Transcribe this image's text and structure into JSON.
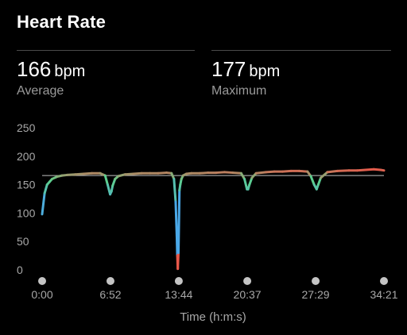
{
  "header": {
    "title": "Heart Rate"
  },
  "stats": {
    "average": {
      "value": "166",
      "unit": "bpm",
      "label": "Average"
    },
    "maximum": {
      "value": "177",
      "unit": "bpm",
      "label": "Maximum"
    }
  },
  "chart_data": {
    "type": "line",
    "title": "",
    "xlabel": "Time (h:m:s)",
    "ylabel": "",
    "x_unit": "seconds",
    "ylim": [
      0,
      250
    ],
    "xlim": [
      0,
      2061
    ],
    "y_ticks": [
      0,
      50,
      100,
      150,
      200,
      250
    ],
    "x_ticks": [
      {
        "seconds": 0,
        "label": "0:00"
      },
      {
        "seconds": 412,
        "label": "6:52"
      },
      {
        "seconds": 824,
        "label": "13:44"
      },
      {
        "seconds": 1237,
        "label": "20:37"
      },
      {
        "seconds": 1649,
        "label": "27:29"
      },
      {
        "seconds": 2061,
        "label": "34:21"
      }
    ],
    "reference_line": 166,
    "grid": false,
    "colors": {
      "low": "#4aa8e8",
      "mid": "#5ed08a",
      "high": "#e8584a",
      "reference": "#bfbfbf",
      "tick_dot": "#c4c4c4"
    },
    "series": [
      {
        "x": [
          0,
          15,
          30,
          45,
          60,
          90,
          120,
          150,
          200,
          250,
          300,
          350,
          380,
          395,
          410,
          418,
          425,
          440,
          460,
          500,
          550,
          600,
          650,
          700,
          750,
          780,
          795,
          805,
          812,
          815,
          818,
          822,
          828,
          833,
          840,
          850,
          870,
          900,
          950,
          1000,
          1050,
          1100,
          1150,
          1200,
          1220,
          1235,
          1242,
          1250,
          1265,
          1290,
          1350,
          1400,
          1450,
          1500,
          1550,
          1600,
          1620,
          1640,
          1655,
          1665,
          1680,
          1720,
          1780,
          1850,
          1900,
          1950,
          2000,
          2040,
          2061
        ],
        "values": [
          98,
          135,
          150,
          155,
          160,
          164,
          166,
          167,
          168,
          169,
          170,
          170,
          166,
          150,
          133,
          138,
          148,
          160,
          165,
          168,
          169,
          170,
          170,
          170,
          171,
          170,
          160,
          120,
          60,
          25,
          2,
          30,
          140,
          150,
          160,
          166,
          169,
          170,
          170,
          171,
          171,
          172,
          171,
          170,
          160,
          142,
          142,
          150,
          162,
          170,
          172,
          173,
          173,
          174,
          174,
          173,
          165,
          150,
          142,
          150,
          162,
          172,
          174,
          175,
          175,
          176,
          177,
          176,
          175
        ]
      }
    ]
  }
}
